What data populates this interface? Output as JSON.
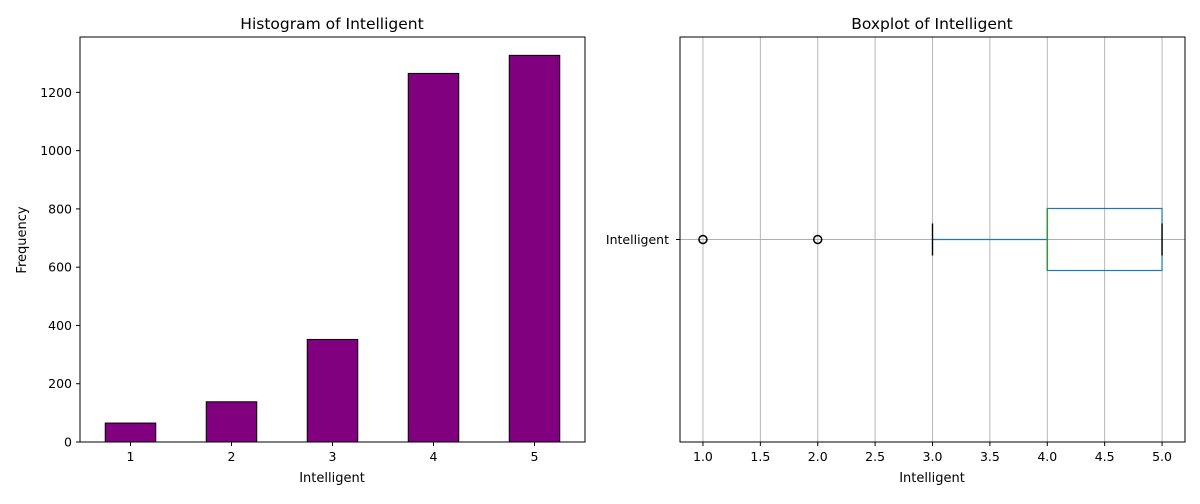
{
  "chart_data": [
    {
      "type": "bar",
      "title": "Histogram of Intelligent",
      "xlabel": "Intelligent",
      "ylabel": "Frequency",
      "categories": [
        "1",
        "2",
        "3",
        "4",
        "5"
      ],
      "values": [
        65,
        138,
        352,
        1265,
        1327
      ],
      "ylim": [
        0,
        1390
      ],
      "yticks": [
        0,
        200,
        400,
        600,
        800,
        1000,
        1200
      ],
      "grid": false,
      "colors": {
        "bar": "#800080",
        "edge": "#000000"
      }
    },
    {
      "type": "box",
      "title": "Boxplot of Intelligent",
      "xlabel": "Intelligent",
      "category": "Intelligent",
      "orientation": "horizontal",
      "stats": {
        "whisker_low": 3,
        "q1": 4,
        "median": 4,
        "q3": 5,
        "whisker_high": 5
      },
      "outliers": [
        1,
        2
      ],
      "xlim": [
        0.8,
        5.2
      ],
      "xticks": [
        "1.0",
        "1.5",
        "2.0",
        "2.5",
        "3.0",
        "3.5",
        "4.0",
        "4.5",
        "5.0"
      ],
      "grid": true,
      "colors": {
        "box": "#1f77b4",
        "median": "#2ca02c",
        "cap": "#000000",
        "grid": "#b0b0b0"
      }
    }
  ]
}
